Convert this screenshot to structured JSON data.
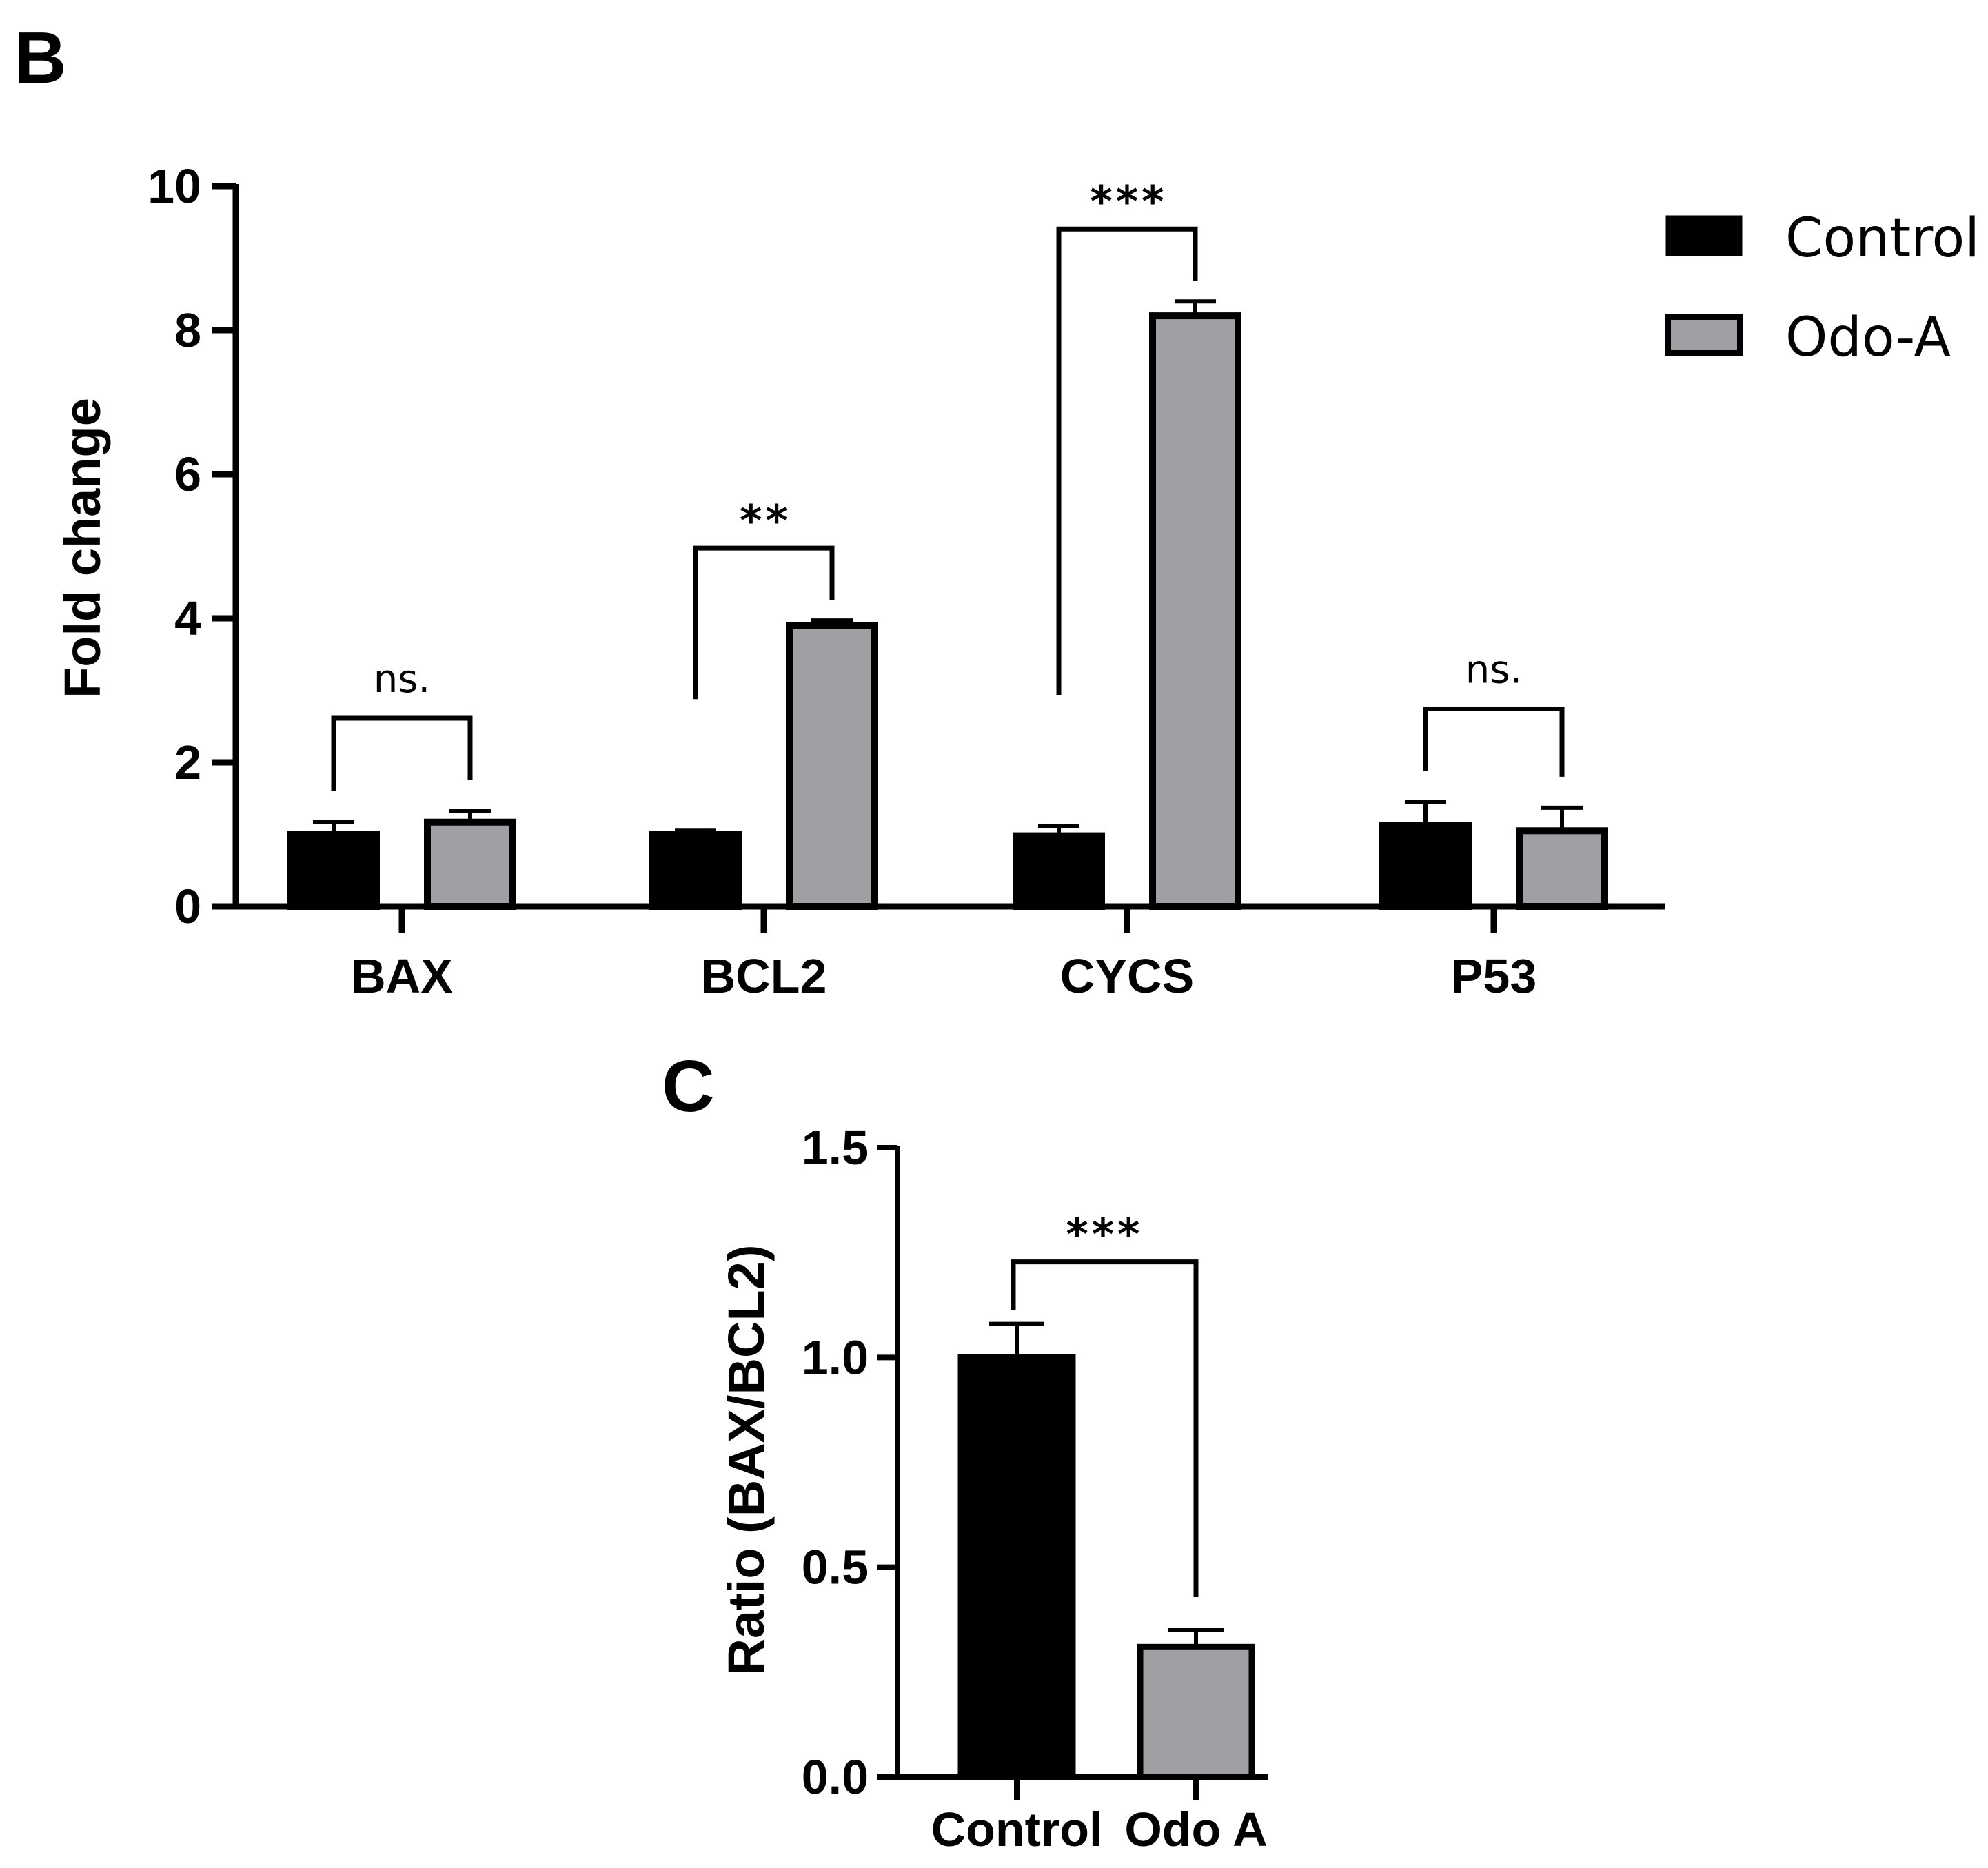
{
  "colors": {
    "control": "#000000",
    "odo_a": "#a0a0a4",
    "stroke": "#000000"
  },
  "chart_data": [
    {
      "panel": "B",
      "type": "bar",
      "title": "",
      "xlabel": "",
      "ylabel": "Fold change",
      "ylim": [
        0,
        10
      ],
      "yticks": [
        0,
        2,
        4,
        6,
        8,
        10
      ],
      "ytick_labels": [
        "0",
        "2",
        "4",
        "6",
        "8",
        "10"
      ],
      "categories": [
        "BAX",
        "BCL2",
        "CYCS",
        "P53"
      ],
      "series": [
        {
          "name": "Control",
          "color": "#000000",
          "values": [
            1.0,
            1.0,
            0.98,
            1.12
          ],
          "errors": [
            0.17,
            0.06,
            0.14,
            0.33
          ]
        },
        {
          "name": "Odo-A",
          "color": "#a0a0a4",
          "values": [
            1.17,
            3.9,
            8.2,
            1.05
          ],
          "errors": [
            0.15,
            0.07,
            0.2,
            0.32
          ]
        }
      ],
      "significance": [
        "ns.",
        "**",
        "***",
        "ns."
      ],
      "legend": [
        "Control",
        "Odo-A"
      ],
      "legend_position": "top-right"
    },
    {
      "panel": "C",
      "type": "bar",
      "title": "",
      "xlabel": "",
      "ylabel": "Ratio (BAX/BCL2)",
      "ylim": [
        0,
        1.5
      ],
      "yticks": [
        0,
        0.5,
        1.0,
        1.5
      ],
      "ytick_labels": [
        "0.0",
        "0.5",
        "1.0",
        "1.5"
      ],
      "categories": [
        "Control",
        "Odo A"
      ],
      "values": [
        1.0,
        0.31
      ],
      "errors": [
        0.08,
        0.04
      ],
      "colors": [
        "#000000",
        "#a0a0a4"
      ],
      "significance": [
        "***"
      ]
    }
  ]
}
